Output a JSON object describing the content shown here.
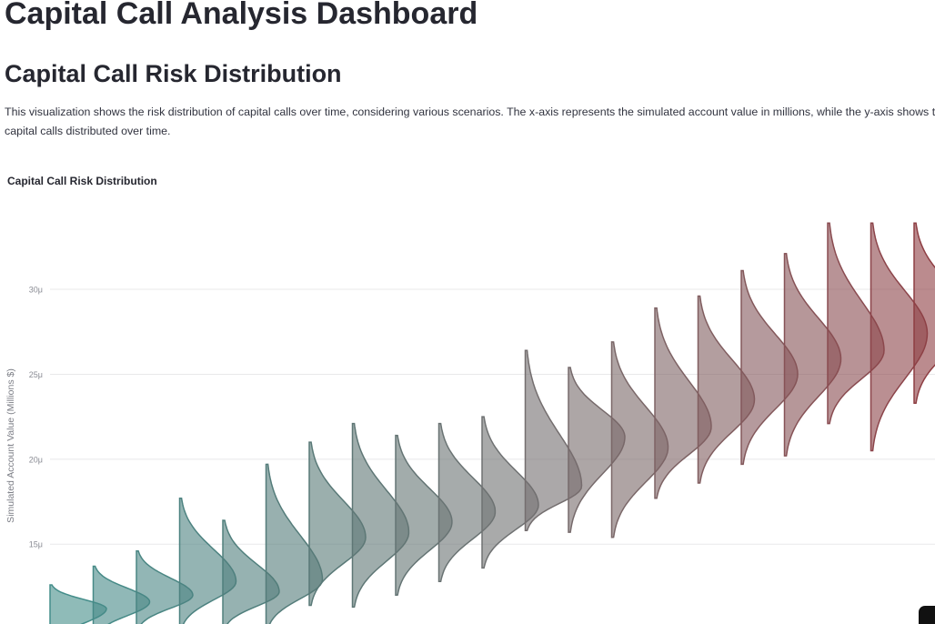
{
  "header": {
    "title": "Capital Call Analysis Dashboard"
  },
  "section": {
    "title": "Capital Call Risk Distribution",
    "description": "This visualization shows the risk distribution of capital calls over time, considering various scenarios. The x-axis represents the simulated account value in millions, while the y-axis shows the capital calls distributed over time."
  },
  "chart_data": {
    "type": "violin",
    "title": "Capital Call Risk Distribution",
    "y_label": "Simulated Account Value (Millions $)",
    "ylim": [
      10.3,
      34.5
    ],
    "yticks": [
      {
        "value": 15,
        "label": "15μ"
      },
      {
        "value": 20,
        "label": "20μ"
      },
      {
        "value": 25,
        "label": "25μ"
      },
      {
        "value": 30,
        "label": "30μ"
      }
    ],
    "grid": true,
    "violins": [
      {
        "low": 9.0,
        "peak": 11.2,
        "high": 12.6,
        "color": "#5bbcb8"
      },
      {
        "low": 9.5,
        "peak": 11.6,
        "high": 13.7,
        "color": "#5eb8b4"
      },
      {
        "low": 10.0,
        "peak": 12.0,
        "high": 14.6,
        "color": "#62b3af"
      },
      {
        "low": 10.0,
        "peak": 12.8,
        "high": 17.7,
        "color": "#66aeab"
      },
      {
        "low": 10.0,
        "peak": 12.2,
        "high": 16.4,
        "color": "#6aa9a6"
      },
      {
        "low": 10.0,
        "peak": 12.9,
        "high": 19.7,
        "color": "#70a5a2"
      },
      {
        "low": 11.4,
        "peak": 15.4,
        "high": 21.0,
        "color": "#77a19f"
      },
      {
        "low": 11.3,
        "peak": 15.7,
        "high": 22.1,
        "color": "#7e9e9c"
      },
      {
        "low": 12.0,
        "peak": 16.3,
        "high": 21.4,
        "color": "#869b9a"
      },
      {
        "low": 12.8,
        "peak": 16.9,
        "high": 22.1,
        "color": "#8d9999"
      },
      {
        "low": 13.6,
        "peak": 17.3,
        "high": 22.5,
        "color": "#949798"
      },
      {
        "low": 15.8,
        "peak": 18.4,
        "high": 26.4,
        "color": "#9a9394"
      },
      {
        "low": 15.7,
        "peak": 21.3,
        "high": 25.4,
        "color": "#9e8e8f"
      },
      {
        "low": 15.4,
        "peak": 20.7,
        "high": 26.9,
        "color": "#a2898a"
      },
      {
        "low": 17.7,
        "peak": 21.9,
        "high": 28.9,
        "color": "#a78385"
      },
      {
        "low": 18.6,
        "peak": 23.5,
        "high": 29.6,
        "color": "#ab7c7f"
      },
      {
        "low": 19.7,
        "peak": 25.0,
        "high": 31.1,
        "color": "#af7579"
      },
      {
        "low": 20.2,
        "peak": 25.9,
        "high": 32.1,
        "color": "#b36d72"
      },
      {
        "low": 22.1,
        "peak": 26.4,
        "high": 33.9,
        "color": "#b7646a"
      },
      {
        "low": 20.5,
        "peak": 27.4,
        "high": 33.9,
        "color": "#ba5b62"
      },
      {
        "low": 23.3,
        "peak": 28.2,
        "high": 33.9,
        "color": "#bd5259"
      }
    ]
  }
}
